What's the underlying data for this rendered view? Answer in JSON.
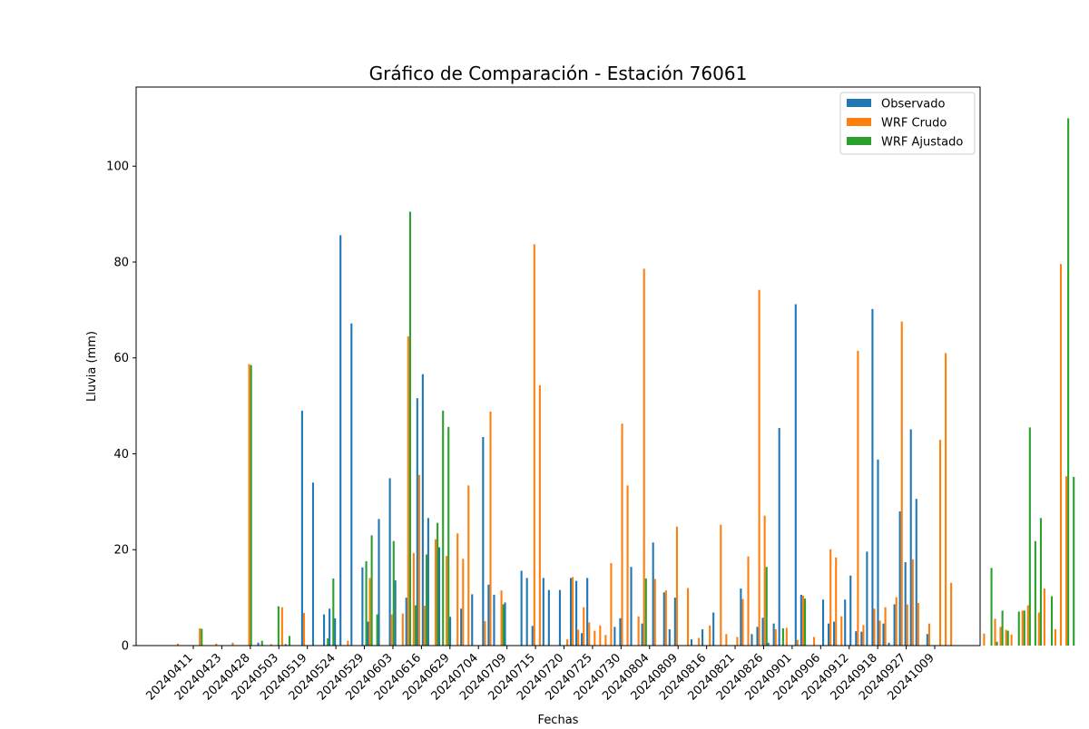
{
  "chart_data": {
    "type": "bar",
    "title": "Gráfico de Comparación - Estación 76061",
    "xlabel": "Fechas",
    "ylabel": "Lluvia (mm)",
    "ylim": [
      0,
      116.5
    ],
    "yticks": [
      0,
      20,
      40,
      60,
      80,
      100
    ],
    "grid": false,
    "legend_position": "top-right",
    "tick_labels": [
      "20240411",
      "20240423",
      "20240428",
      "20240503",
      "20240519",
      "20240524",
      "20240529",
      "20240603",
      "20240616",
      "20240629",
      "20240704",
      "20240709",
      "20240715",
      "20240720",
      "20240725",
      "20240730",
      "20240804",
      "20240809",
      "20240816",
      "20240821",
      "20240826",
      "20240901",
      "20240906",
      "20240912",
      "20240918",
      "20240927",
      "20241009"
    ],
    "series": [
      {
        "name": "Observado",
        "color": "#1f77b4",
        "values": [
          0,
          0,
          0,
          0,
          0,
          0,
          0,
          0,
          0,
          0,
          0,
          0,
          0,
          0,
          0,
          0.6,
          0,
          0,
          0,
          0,
          0.3,
          0,
          0,
          49,
          0,
          34,
          0,
          6.5,
          7.7,
          5.7,
          85.6,
          0,
          67.2,
          0,
          16.3,
          5,
          0,
          26.4,
          0,
          34.9,
          13.6,
          0,
          10,
          0,
          51.6,
          56.6,
          26.6,
          0,
          20.5,
          0,
          6,
          0,
          7.7,
          0,
          10.7,
          0,
          43.5,
          12.7,
          10.6,
          0,
          9,
          0,
          0,
          15.6,
          14.1,
          4.1,
          0,
          14.1,
          11.6,
          0,
          11.6,
          0,
          14.1,
          13.5,
          2.6,
          14.1,
          0,
          0,
          0,
          0,
          3.9,
          5.7,
          0,
          16.4,
          0,
          4.6,
          0,
          21.5,
          0,
          11.1,
          3.4,
          10,
          0,
          0,
          1.3,
          0,
          3.4,
          0,
          6.9,
          0,
          0,
          0,
          0,
          11.9,
          0,
          2.4,
          3.9,
          5.8,
          0.6,
          4.6,
          45.4,
          0,
          0,
          71.2,
          10.6,
          0,
          0,
          0,
          9.6,
          4.6,
          5,
          0,
          9.6,
          14.6,
          3,
          2.9,
          19.6,
          70.2,
          38.8,
          4.6,
          0.6,
          8.6,
          28,
          17.4,
          45.1,
          30.6,
          0,
          2.4,
          0
        ]
      },
      {
        "name": "WRF Crudo",
        "color": "#ff7f0e",
        "values": [
          0.4,
          0,
          0,
          0,
          3.6,
          0,
          0,
          0.4,
          0,
          0,
          0.6,
          0,
          0,
          58.7,
          0,
          0,
          0,
          0.3,
          0,
          8,
          0,
          0,
          0,
          6.8,
          0,
          0,
          0,
          0,
          0,
          0,
          0,
          1,
          0,
          0,
          0,
          14.1,
          0,
          0,
          0,
          6.5,
          0,
          6.7,
          64.5,
          19.3,
          35.6,
          8.3,
          0,
          22.2,
          0,
          18.7,
          0,
          23.4,
          18.1,
          33.4,
          0,
          0,
          5.1,
          48.8,
          0,
          11.5,
          0,
          0,
          0,
          0,
          0,
          83.7,
          54.3,
          0,
          0,
          0,
          0,
          1.3,
          14.3,
          3.3,
          8,
          4.8,
          3.1,
          4.2,
          2.2,
          17.2,
          0,
          46.3,
          33.4,
          0,
          6.1,
          78.6,
          0,
          13.9,
          0,
          11.5,
          0,
          24.8,
          0,
          12,
          0,
          1.6,
          0,
          4.2,
          0,
          25.2,
          2.4,
          0,
          1.8,
          9.7,
          18.6,
          0,
          74.2,
          27.1,
          0,
          3.4,
          0,
          3.7,
          0,
          1.2,
          10.4,
          0,
          1.8,
          0,
          0,
          20.1,
          18.4,
          6.1,
          0,
          0,
          61.5,
          4.3,
          0,
          7.7,
          5.2,
          8,
          0,
          10.1,
          67.6,
          8.6,
          18,
          8.9,
          0,
          4.6,
          0,
          42.9,
          61,
          13.1,
          0,
          0,
          0,
          0,
          0,
          2.5,
          0,
          5.6,
          3.9,
          3.3,
          2.3,
          0,
          7.3,
          8.4,
          0,
          6.9,
          11.9,
          0,
          3.4,
          79.6,
          35.3
        ]
      },
      {
        "name": "WRF Ajustado",
        "color": "#2ca02c",
        "values": [
          0,
          0,
          0,
          0,
          3.5,
          0,
          0,
          0,
          0,
          0,
          0,
          0,
          0,
          58.5,
          0,
          1,
          0,
          0,
          8.2,
          0,
          2,
          0,
          0,
          0,
          0,
          0,
          0,
          1.5,
          14,
          0,
          0,
          0,
          0,
          0,
          17.6,
          23,
          6.5,
          0,
          0,
          21.8,
          0,
          0,
          90.5,
          8.4,
          0,
          19,
          0,
          25.6,
          49,
          45.6,
          0,
          0,
          0,
          0,
          0,
          0,
          0,
          0,
          0,
          8.6,
          0,
          0,
          0,
          0,
          0,
          0,
          0,
          0,
          0,
          0,
          0,
          0,
          0,
          0,
          0,
          0,
          0,
          0,
          0,
          0,
          0,
          0,
          0,
          0,
          0,
          14,
          0,
          0,
          0,
          0,
          0,
          0,
          0,
          0,
          0,
          0,
          0,
          0,
          0,
          0,
          0,
          0,
          0,
          0,
          0,
          0,
          0,
          16.4,
          0,
          0,
          3.6,
          0,
          0,
          0,
          9.8,
          0,
          0,
          0,
          0,
          0,
          0,
          0,
          0,
          0,
          0,
          0,
          0,
          0,
          0,
          0,
          0,
          0,
          0,
          0,
          0,
          0,
          0,
          0,
          0,
          0,
          0,
          0,
          0,
          0,
          0,
          0,
          0,
          0,
          16.2,
          0.8,
          7.3,
          3.1,
          0,
          7.1,
          7.3,
          45.5,
          21.8,
          26.6,
          0,
          10.3,
          0,
          0,
          110,
          35.2
        ]
      }
    ]
  }
}
